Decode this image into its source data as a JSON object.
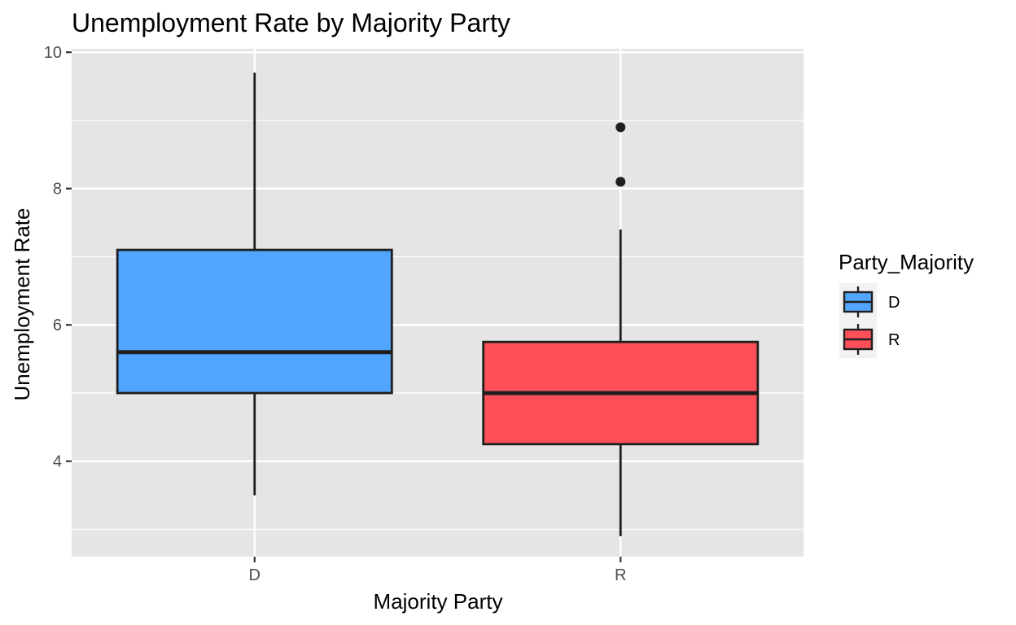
{
  "chart_data": {
    "type": "boxplot",
    "title": "Unemployment Rate by Majority Party",
    "xlabel": "Majority Party",
    "ylabel": "Unemployment Rate",
    "ylim": [
      2.6,
      10.05
    ],
    "yticks": [
      4,
      6,
      8,
      10
    ],
    "categories": [
      "D",
      "R"
    ],
    "boxes": [
      {
        "category": "D",
        "lower_whisker": 3.5,
        "q1": 5.0,
        "median": 5.6,
        "q3": 7.1,
        "upper_whisker": 9.7,
        "outliers": [],
        "fill": "#52a5ff"
      },
      {
        "category": "R",
        "lower_whisker": 2.9,
        "q1": 4.25,
        "median": 5.0,
        "q3": 5.75,
        "upper_whisker": 7.4,
        "outliers": [
          8.1,
          8.9
        ],
        "fill": "#ff4f58"
      }
    ],
    "legend": {
      "title": "Party_Majority",
      "position": "right",
      "entries": [
        {
          "label": "D",
          "fill": "#52a5ff"
        },
        {
          "label": "R",
          "fill": "#ff4f58"
        }
      ]
    },
    "grid": true,
    "panel_background": "#e5e5e5"
  }
}
